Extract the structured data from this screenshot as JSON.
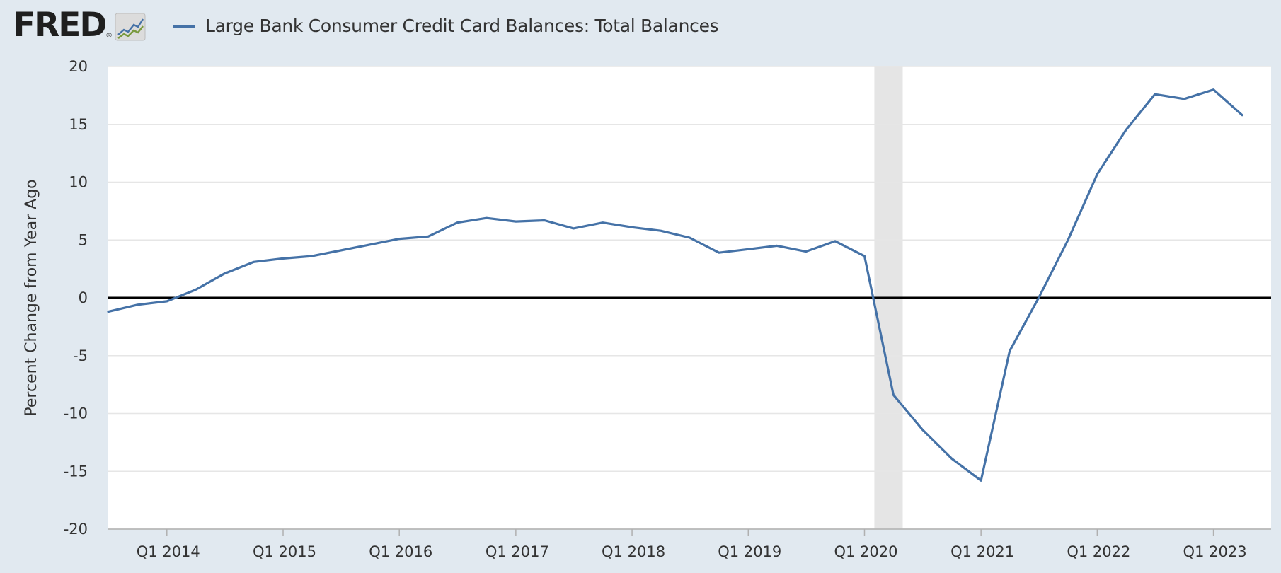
{
  "header": {
    "logo_text": "FRED",
    "logo_reg": "®",
    "legend_label": "Large Bank Consumer Credit Card Balances: Total Balances"
  },
  "icons": {
    "logo_graph": "trend-line-graph-icon"
  },
  "colors": {
    "series": "#4572a7",
    "background": "#e1e9f0",
    "plot": "#ffffff",
    "recession": "#e5e5e5",
    "zero_line": "#000000"
  },
  "chart_data": {
    "type": "line",
    "title": "",
    "xlabel": "",
    "ylabel": "Percent Change from Year Ago",
    "ylim": [
      -20,
      20
    ],
    "yticks": [
      20,
      15,
      10,
      5,
      0,
      -5,
      -10,
      -15,
      -20
    ],
    "grid": true,
    "legend_position": "top-left",
    "x_range": [
      "2013-07-01",
      "2023-07-01"
    ],
    "xtick_labels": [
      "Q1 2014",
      "Q1 2015",
      "Q1 2016",
      "Q1 2017",
      "Q1 2018",
      "Q1 2019",
      "Q1 2020",
      "Q1 2021",
      "Q1 2022",
      "Q1 2023"
    ],
    "xtick_dates": [
      "2014-01-01",
      "2015-01-01",
      "2016-01-01",
      "2017-01-01",
      "2018-01-01",
      "2019-01-01",
      "2020-01-01",
      "2021-01-01",
      "2022-01-01",
      "2023-01-01"
    ],
    "recession": [
      "2020-02-01",
      "2020-04-30"
    ],
    "series": [
      {
        "name": "Large Bank Consumer Credit Card Balances: Total Balances",
        "x": [
          "2013-07-01",
          "2013-10-01",
          "2014-01-01",
          "2014-04-01",
          "2014-07-01",
          "2014-10-01",
          "2015-01-01",
          "2015-04-01",
          "2015-07-01",
          "2015-10-01",
          "2016-01-01",
          "2016-04-01",
          "2016-07-01",
          "2016-10-01",
          "2017-01-01",
          "2017-04-01",
          "2017-07-01",
          "2017-10-01",
          "2018-01-01",
          "2018-04-01",
          "2018-07-01",
          "2018-10-01",
          "2019-01-01",
          "2019-04-01",
          "2019-07-01",
          "2019-10-01",
          "2020-01-01",
          "2020-04-01",
          "2020-07-01",
          "2020-10-01",
          "2021-01-01",
          "2021-04-01",
          "2021-07-01",
          "2021-10-01",
          "2022-01-01",
          "2022-04-01",
          "2022-07-01",
          "2022-10-01",
          "2023-01-01",
          "2023-04-01"
        ],
        "values": [
          -1.2,
          -0.6,
          -0.3,
          0.7,
          2.1,
          3.1,
          3.4,
          3.6,
          4.1,
          4.6,
          5.1,
          5.3,
          6.5,
          6.9,
          6.6,
          6.7,
          6.0,
          6.5,
          6.1,
          5.8,
          5.2,
          3.9,
          4.2,
          4.5,
          4.0,
          4.9,
          3.6,
          -8.4,
          -11.4,
          -13.9,
          -15.8,
          -4.6,
          0.0,
          5.0,
          10.7,
          14.5,
          17.6,
          17.2,
          18.0,
          15.8
        ]
      }
    ]
  }
}
